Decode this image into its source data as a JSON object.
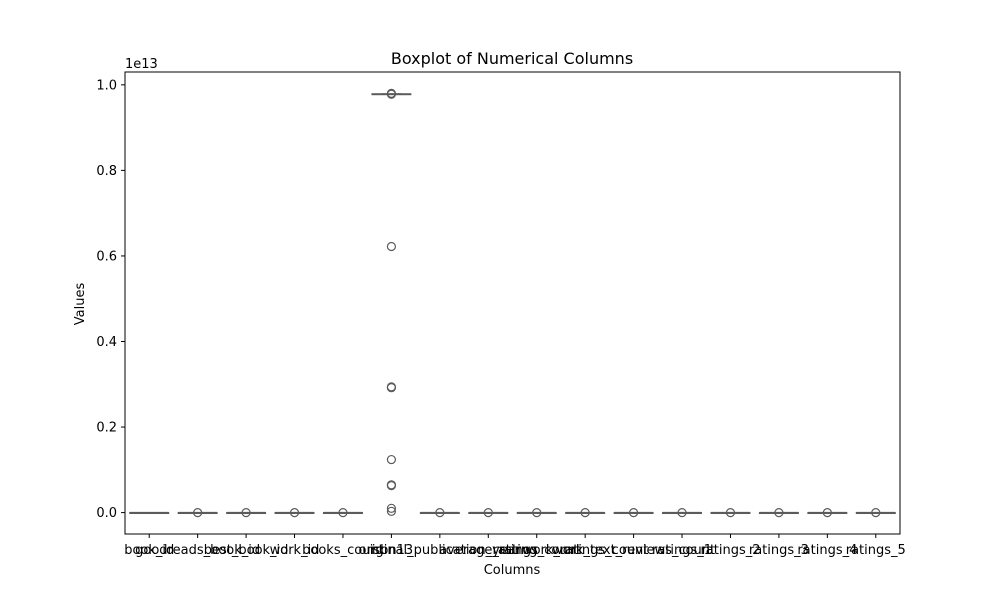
{
  "chart_data": {
    "type": "box",
    "title": "Boxplot of Numerical Columns",
    "xlabel": "Columns",
    "ylabel": "Values",
    "y_offset_label": "1e13",
    "y_scale": 10000000000000.0,
    "ylim": [
      -0.05,
      1.03
    ],
    "yticks": [
      0.0,
      0.2,
      0.4,
      0.6,
      0.8,
      1.0
    ],
    "ytick_labels": [
      "0.0",
      "0.2",
      "0.4",
      "0.6",
      "0.8",
      "1.0"
    ],
    "grid": false,
    "legend": "none",
    "box_color": "#5b5b5b",
    "categories": [
      "book_id",
      "goodreads_book_id",
      "best_book_id",
      "work_id",
      "books_count",
      "isbn13",
      "original_publication_year",
      "average_rating",
      "ratings_count",
      "work_ratings_count",
      "work_text_reviews_count",
      "ratings_1",
      "ratings_2",
      "ratings_3",
      "ratings_4",
      "ratings_5"
    ],
    "series": [
      {
        "q1": 0,
        "median": 0,
        "q3": 0,
        "whisker_low": 0,
        "whisker_high": 0,
        "outliers": []
      },
      {
        "q1": 0,
        "median": 0,
        "q3": 0,
        "whisker_low": 0,
        "whisker_high": 0,
        "outliers": [
          0.0
        ]
      },
      {
        "q1": 0,
        "median": 0,
        "q3": 0,
        "whisker_low": 0,
        "whisker_high": 0,
        "outliers": [
          0.0
        ]
      },
      {
        "q1": 0,
        "median": 0,
        "q3": 0,
        "whisker_low": 0,
        "whisker_high": 0,
        "outliers": [
          0.0
        ]
      },
      {
        "q1": 0,
        "median": 0,
        "q3": 0,
        "whisker_low": 0,
        "whisker_high": 0,
        "outliers": [
          0.0
        ]
      },
      {
        "q1": 0.978,
        "median": 0.978,
        "q3": 0.979,
        "whisker_low": 0.978,
        "whisker_high": 0.979,
        "outliers": [
          0.98,
          0.978,
          0.622,
          0.294,
          0.292,
          0.124,
          0.065,
          0.063,
          0.01,
          0.003
        ]
      },
      {
        "q1": 0,
        "median": 0,
        "q3": 0,
        "whisker_low": 0,
        "whisker_high": 0,
        "outliers": [
          0.0
        ]
      },
      {
        "q1": 0,
        "median": 0,
        "q3": 0,
        "whisker_low": 0,
        "whisker_high": 0,
        "outliers": [
          0.0
        ]
      },
      {
        "q1": 0,
        "median": 0,
        "q3": 0,
        "whisker_low": 0,
        "whisker_high": 0,
        "outliers": [
          0.0
        ]
      },
      {
        "q1": 0,
        "median": 0,
        "q3": 0,
        "whisker_low": 0,
        "whisker_high": 0,
        "outliers": [
          0.0
        ]
      },
      {
        "q1": 0,
        "median": 0,
        "q3": 0,
        "whisker_low": 0,
        "whisker_high": 0,
        "outliers": [
          0.0
        ]
      },
      {
        "q1": 0,
        "median": 0,
        "q3": 0,
        "whisker_low": 0,
        "whisker_high": 0,
        "outliers": [
          0.0
        ]
      },
      {
        "q1": 0,
        "median": 0,
        "q3": 0,
        "whisker_low": 0,
        "whisker_high": 0,
        "outliers": [
          0.0
        ]
      },
      {
        "q1": 0,
        "median": 0,
        "q3": 0,
        "whisker_low": 0,
        "whisker_high": 0,
        "outliers": [
          0.0
        ]
      },
      {
        "q1": 0,
        "median": 0,
        "q3": 0,
        "whisker_low": 0,
        "whisker_high": 0,
        "outliers": [
          0.0
        ]
      },
      {
        "q1": 0,
        "median": 0,
        "q3": 0,
        "whisker_low": 0,
        "whisker_high": 0,
        "outliers": [
          0.0
        ]
      }
    ]
  }
}
